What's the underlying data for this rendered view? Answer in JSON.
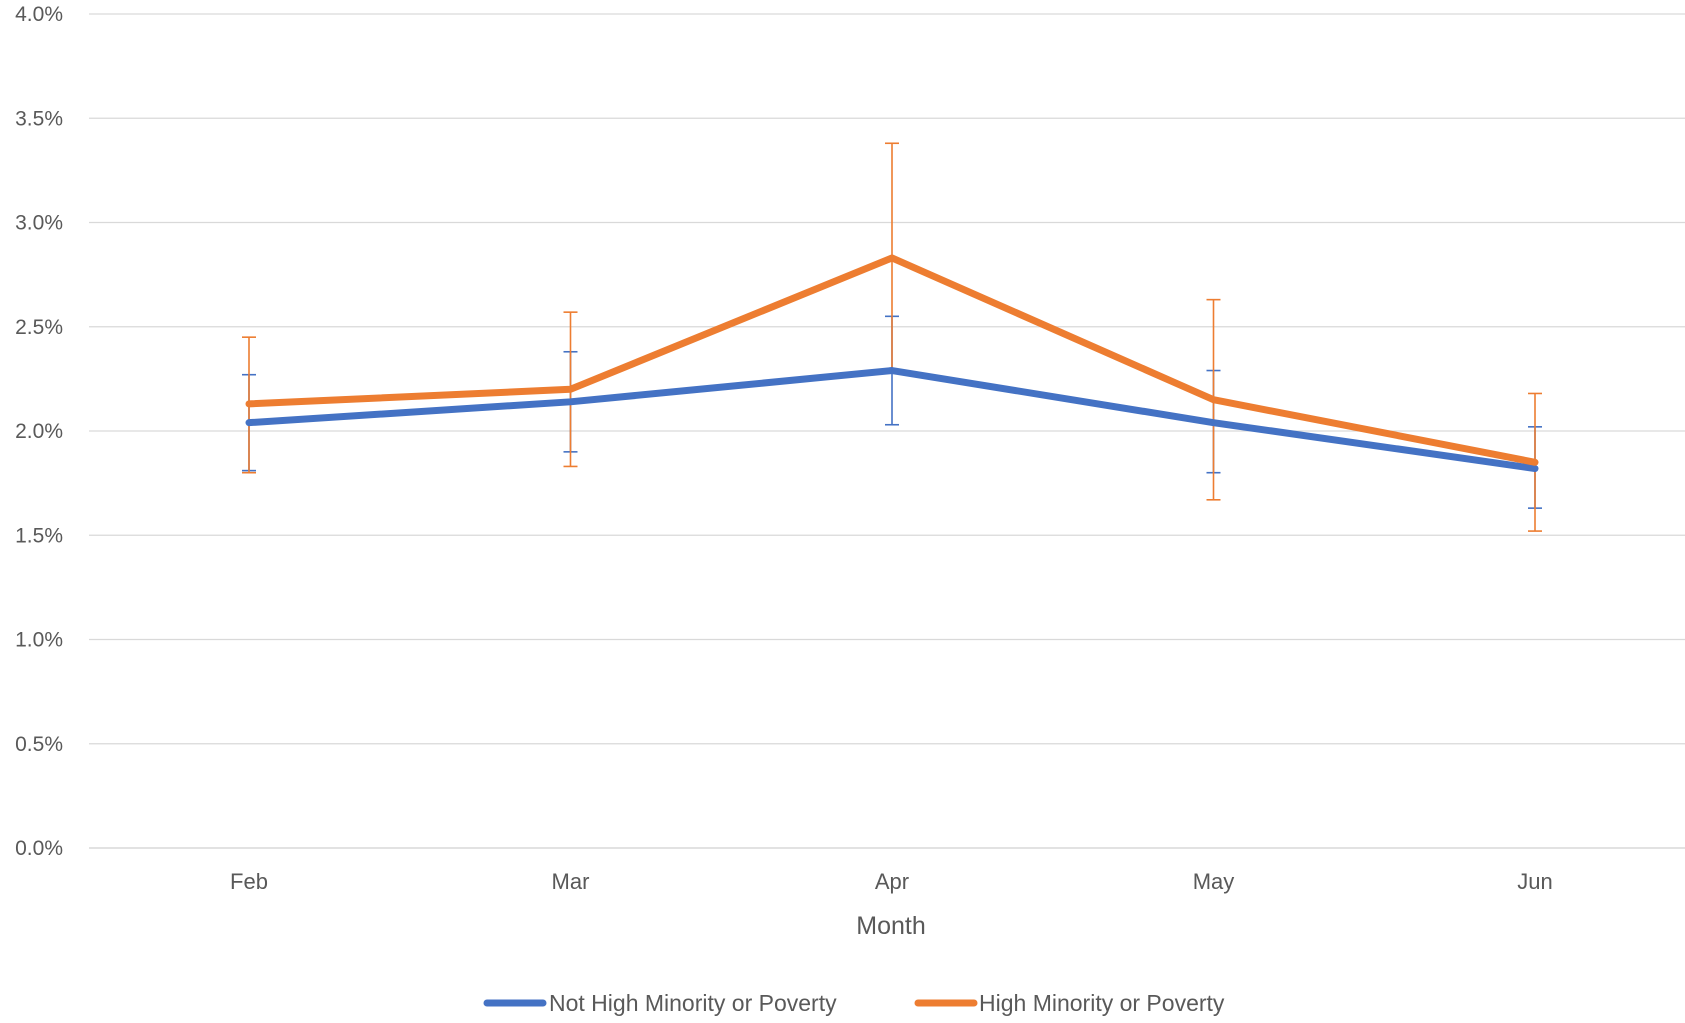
{
  "chart_data": {
    "type": "line",
    "title": "",
    "xlabel": "Month",
    "ylabel": "",
    "categories": [
      "Feb",
      "Mar",
      "Apr",
      "May",
      "Jun"
    ],
    "ylim": [
      0,
      4.0
    ],
    "yticks": [
      0.0,
      0.5,
      1.0,
      1.5,
      2.0,
      2.5,
      3.0,
      3.5,
      4.0
    ],
    "ytick_labels": [
      "0.0%",
      "0.5%",
      "1.0%",
      "1.5%",
      "2.0%",
      "2.5%",
      "3.0%",
      "3.5%",
      "4.0%"
    ],
    "grid": true,
    "legend_position": "bottom",
    "series": [
      {
        "name": "Not High Minority or Poverty",
        "color": "#4472C4",
        "values": [
          2.04,
          2.14,
          2.29,
          2.04,
          1.82
        ],
        "err_low": [
          1.81,
          1.9,
          2.03,
          1.8,
          1.63
        ],
        "err_high": [
          2.27,
          2.38,
          2.55,
          2.29,
          2.02
        ]
      },
      {
        "name": "High Minority or Poverty",
        "color": "#ED7D31",
        "values": [
          2.13,
          2.2,
          2.83,
          2.15,
          1.85
        ],
        "err_low": [
          1.8,
          1.83,
          2.29,
          1.67,
          1.52
        ],
        "err_high": [
          2.45,
          2.57,
          3.38,
          2.63,
          2.18
        ]
      }
    ]
  }
}
